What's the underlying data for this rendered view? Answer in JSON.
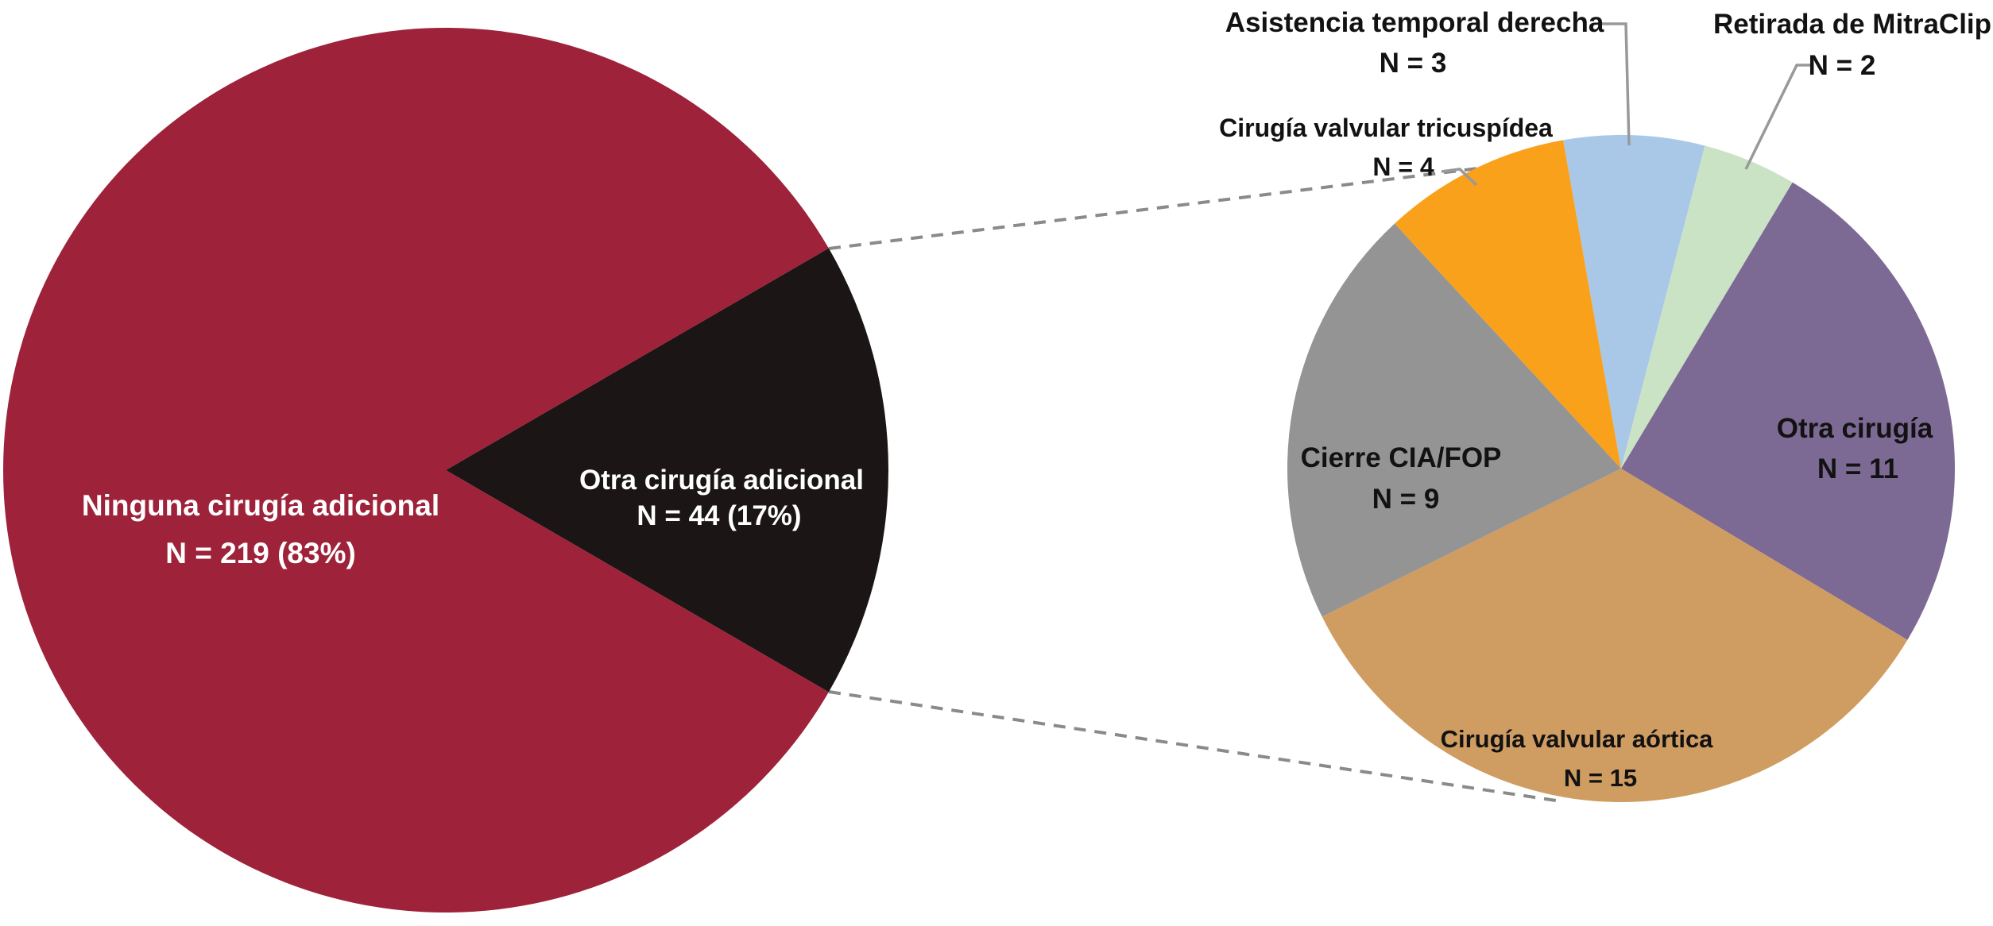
{
  "figure": {
    "background": "#FFFFFF",
    "connector_line_color": "#8A8A8A",
    "callout_line_color": "#999999",
    "text_color": "#121212",
    "inverse_text_color": "#FFFFFF"
  },
  "chart_data": [
    {
      "type": "pie",
      "id": "main-pie",
      "title": "",
      "legend_position": "none",
      "grid": false,
      "slices": [
        {
          "label": "Otra cirugía adicional",
          "sublabel": "N = 44  (17%)",
          "value": 44,
          "percent": "17%",
          "color": "#1B1515",
          "label_color": "#FFFFFF"
        },
        {
          "label": "Ninguna cirugía adicional",
          "sublabel": "N =  219  (83%)",
          "value": 219,
          "percent": "83%",
          "color": "#9E2239",
          "label_color": "#FFFFFF"
        }
      ]
    },
    {
      "type": "pie",
      "id": "breakdown-pie",
      "title": "",
      "legend_position": "none",
      "grid": false,
      "slices": [
        {
          "label": "Asistencia temporal derecha",
          "sublabel": "N =  3",
          "value": 3,
          "color": "#A9C8E8",
          "label_color": "#121212"
        },
        {
          "label": "Retirada de  MitraClip",
          "sublabel": "N = 2",
          "value": 2,
          "color": "#CBE3C5",
          "label_color": "#121212"
        },
        {
          "label": "Otra cirugía",
          "sublabel": "N = 11",
          "value": 11,
          "color": "#7D6A94",
          "label_color": "#121212"
        },
        {
          "label": "Cirugía valvular aórtica",
          "sublabel": "N = 15",
          "value": 15,
          "color": "#CF9C62",
          "label_color": "#121212"
        },
        {
          "label": "Cierre CIA/FOP",
          "sublabel": "N = 9",
          "value": 9,
          "color": "#959494",
          "label_color": "#121212"
        },
        {
          "label": "Cirugía valvular tricuspídea",
          "sublabel": "N = 4",
          "value": 4,
          "color": "#F9A11B",
          "label_color": "#121212"
        }
      ]
    }
  ]
}
